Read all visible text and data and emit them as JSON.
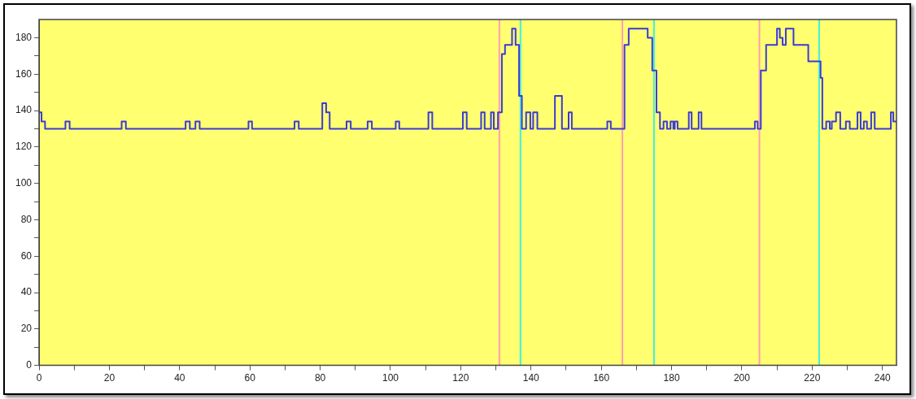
{
  "chart_data": {
    "type": "step",
    "grid": false,
    "marker": "none",
    "legend": false,
    "xlim": [
      0,
      244
    ],
    "ylim": [
      0,
      190
    ],
    "xticks": [
      0,
      {
        "value": 10,
        "label": null
      },
      20,
      {
        "value": 30,
        "label": null
      },
      40,
      {
        "value": 50,
        "label": null
      },
      60,
      {
        "value": 70,
        "label": null
      },
      80,
      {
        "value": 90,
        "label": null
      },
      100,
      {
        "value": 110,
        "label": null
      },
      120,
      {
        "value": 130,
        "label": null
      },
      140,
      {
        "value": 150,
        "label": null
      },
      160,
      {
        "value": 170,
        "label": null
      },
      180,
      {
        "value": 190,
        "label": null
      },
      200,
      {
        "value": 210,
        "label": null
      },
      220,
      {
        "value": 230,
        "label": null
      },
      240
    ],
    "yticks": [
      0,
      {
        "value": 10,
        "label": null
      },
      20,
      {
        "value": 30,
        "label": null
      },
      40,
      {
        "value": 50,
        "label": null
      },
      60,
      {
        "value": 70,
        "label": null
      },
      80,
      {
        "value": 90,
        "label": null
      },
      100,
      {
        "value": 110,
        "label": null
      },
      120,
      {
        "value": 130,
        "label": null
      },
      140,
      {
        "value": 150,
        "label": null
      },
      160,
      {
        "value": 170,
        "label": null
      },
      180
    ],
    "series": [
      {
        "color": "#3a3ad8",
        "x": [
          0,
          0.7,
          1.7,
          7.5,
          8.7,
          23.5,
          24.7,
          41.7,
          42.9,
          44.5,
          45.7,
          59.6,
          60.6,
          72.7,
          73.9,
          80.6,
          81.7,
          82.7,
          87.5,
          88.7,
          93.5,
          94.7,
          101.5,
          102.5,
          110.8,
          111.9,
          120.6,
          121.7,
          125.8,
          126.8,
          128.6,
          129.4,
          130.6,
          131.7,
          132.6,
          134.6,
          135.6,
          136.6,
          137.4,
          138.6,
          139.8,
          140.6,
          141.8,
          146.8,
          148.8,
          150.7,
          151.6,
          161.7,
          162.7,
          166.6,
          167.8,
          173.2,
          174.5,
          175.7,
          176.7,
          177.7,
          178.7,
          179.7,
          180.5,
          180.9,
          181.7,
          184.9,
          185.7,
          187.7,
          188.5,
          203.7,
          204.5,
          205.4,
          206.9,
          210,
          210.8,
          211.6,
          212.5,
          214.7,
          218.9,
          222.4,
          222.9,
          224,
          225,
          225.6,
          226.8,
          228,
          229.6,
          230.7,
          232.9,
          233.8,
          234.7,
          235.6,
          236.8,
          237.8,
          242.4,
          243.1,
          244
        ],
        "values": [
          139,
          134,
          130,
          134,
          130,
          134,
          130,
          134,
          130,
          134,
          130,
          134,
          130,
          134,
          130,
          144,
          139,
          130,
          134,
          130,
          134,
          130,
          134,
          130,
          139,
          130,
          139,
          130,
          139,
          130,
          139,
          130,
          139,
          171,
          176,
          185,
          176,
          148,
          130,
          139,
          130,
          139,
          130,
          148,
          130,
          139,
          130,
          134,
          130,
          176,
          185,
          180,
          162,
          139,
          130,
          134,
          130,
          134,
          130,
          134,
          130,
          139,
          130,
          139,
          130,
          134,
          130,
          162,
          176,
          185,
          180,
          176,
          185,
          176,
          167,
          158,
          130,
          134,
          130,
          134,
          139,
          130,
          134,
          130,
          139,
          130,
          134,
          130,
          139,
          130,
          139,
          134,
          134
        ]
      }
    ],
    "ref_lines": [
      {
        "axis": "x",
        "value": 131,
        "color": "#ffa0b4"
      },
      {
        "axis": "x",
        "value": 137,
        "color": "#40f0e0"
      },
      {
        "axis": "x",
        "value": 166,
        "color": "#ffa0b4"
      },
      {
        "axis": "x",
        "value": 175,
        "color": "#40f0e0"
      },
      {
        "axis": "x",
        "value": 205,
        "color": "#ffa0b4"
      },
      {
        "axis": "x",
        "value": 222,
        "color": "#40f0e0"
      }
    ]
  }
}
